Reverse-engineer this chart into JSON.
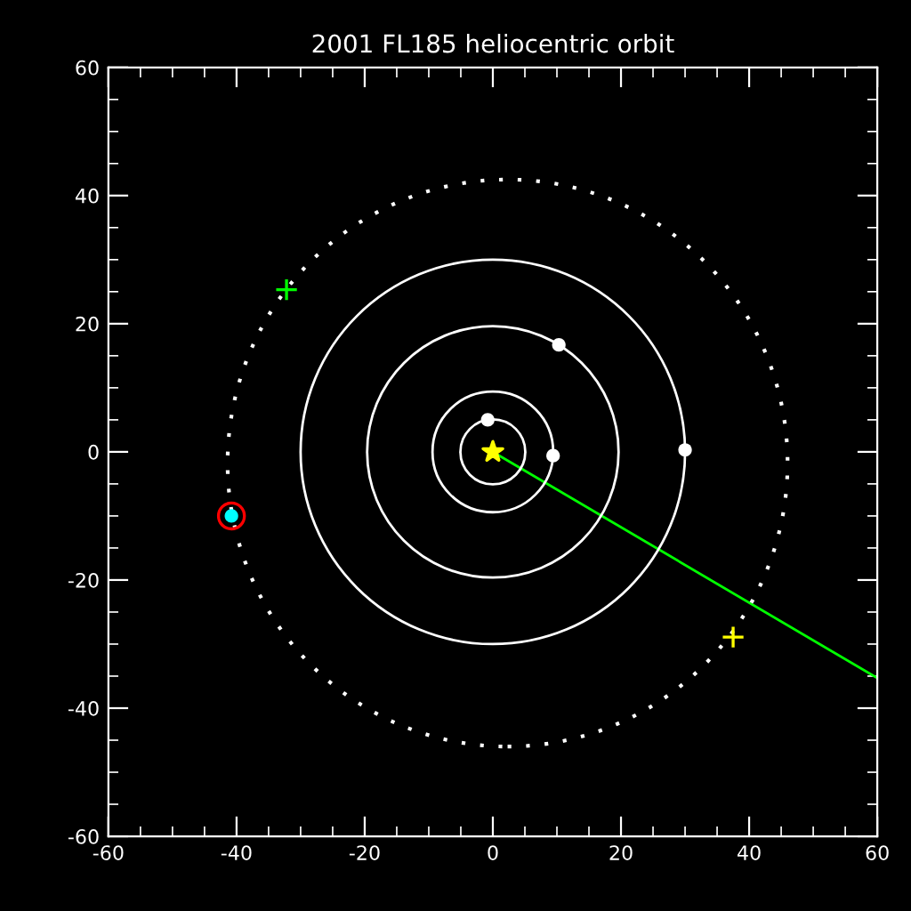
{
  "chart_data": {
    "type": "line",
    "title": "2001 FL185 heliocentric orbit",
    "xlim": [
      -60,
      60
    ],
    "ylim": [
      -60,
      60
    ],
    "xticks": [
      -60,
      -40,
      -20,
      0,
      20,
      40,
      60
    ],
    "yticks": [
      -60,
      -40,
      -20,
      0,
      20,
      40,
      60
    ],
    "series": [
      {
        "color": "#00ff00",
        "line_style": "solid",
        "x": [
          0,
          60
        ],
        "values": [
          0,
          -35.3
        ]
      },
      {
        "type": "scatter",
        "color": "#ffffff",
        "marker": "circle",
        "x": [
          -0.8,
          9.4,
          10.3,
          30
        ],
        "values": [
          5,
          -0.6,
          16.7,
          0.3
        ]
      },
      {
        "type": "scatter",
        "color": "#00ffff",
        "marker": "circle",
        "x": [
          -40.8
        ],
        "values": [
          -10
        ]
      },
      {
        "type": "scatter",
        "color": "#ff0000",
        "marker": "circle",
        "x": [
          -40.8
        ],
        "values": [
          -10
        ]
      },
      {
        "type": "scatter",
        "color": "#ffff00",
        "marker": "star",
        "x": [
          0
        ],
        "values": [
          0
        ]
      },
      {
        "type": "scatter",
        "color": "#00ff00",
        "marker": "cross",
        "x": [
          -32.2
        ],
        "values": [
          25.3
        ]
      },
      {
        "type": "scatter",
        "color": "#ffff00",
        "marker": "cross",
        "x": [
          37.5
        ],
        "values": [
          -28.9
        ]
      }
    ]
  }
}
